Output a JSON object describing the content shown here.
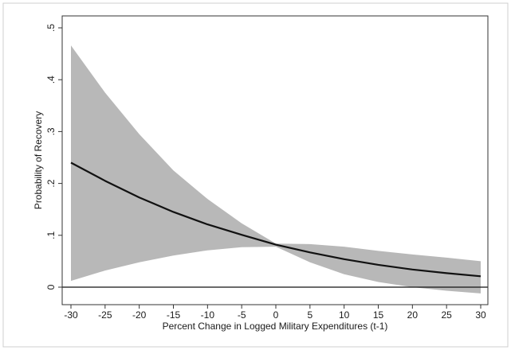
{
  "chart_data": {
    "type": "line",
    "xlabel": "Percent Change in Logged Military Expenditures (t-1)",
    "ylabel": "Probability of Recovery",
    "xlim": [
      -30,
      30
    ],
    "ylim": [
      0,
      0.5
    ],
    "x_ticks": [
      -30,
      -25,
      -20,
      -15,
      -10,
      -5,
      0,
      5,
      10,
      15,
      20,
      25,
      30
    ],
    "x_tick_labels": [
      "-30",
      "-25",
      "-20",
      "-15",
      "-10",
      "-5",
      "0",
      "5",
      "10",
      "15",
      "20",
      "25",
      "30"
    ],
    "y_ticks": [
      0,
      0.1,
      0.2,
      0.3,
      0.4,
      0.5
    ],
    "y_tick_labels": [
      "0",
      ".1",
      ".2",
      ".3",
      ".4",
      ".5"
    ],
    "grid": false,
    "reference_line_y": 0,
    "colors": {
      "line": "#111111",
      "band": "#b8b8b8",
      "frame": "#333333"
    },
    "series": [
      {
        "x": [
          -30,
          -25,
          -20,
          -15,
          -10,
          -5,
          0,
          5,
          10,
          15,
          20,
          25,
          30
        ],
        "values": [
          0.24,
          0.205,
          0.173,
          0.145,
          0.121,
          0.101,
          0.082,
          0.067,
          0.054,
          0.043,
          0.034,
          0.027,
          0.021
        ]
      }
    ],
    "band": {
      "x": [
        -30,
        -25,
        -20,
        -15,
        -10,
        -5,
        0,
        5,
        10,
        15,
        20,
        25,
        30
      ],
      "upper": [
        0.466,
        0.375,
        0.295,
        0.225,
        0.17,
        0.123,
        0.084,
        0.083,
        0.078,
        0.07,
        0.063,
        0.057,
        0.05
      ],
      "lower": [
        0.012,
        0.032,
        0.048,
        0.061,
        0.071,
        0.077,
        0.078,
        0.048,
        0.025,
        0.01,
        0.0,
        -0.007,
        -0.012
      ]
    }
  }
}
